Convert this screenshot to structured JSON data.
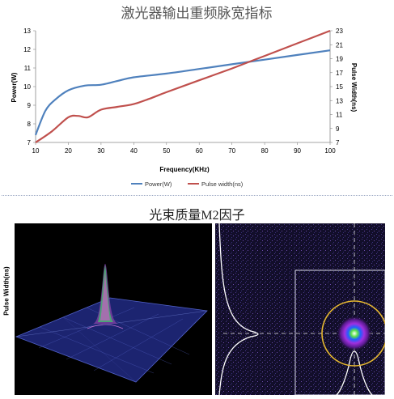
{
  "chart_data": {
    "type": "line",
    "title": "激光器输出重频脉宽指标",
    "xlabel": "Frequency(KHz)",
    "ylabel": "Power(W)",
    "y2label": "Pulse Width(ns)",
    "xlim": [
      10,
      100
    ],
    "ylim": [
      7,
      13
    ],
    "y2lim": [
      7,
      23
    ],
    "x_ticks": [
      10,
      20,
      30,
      40,
      50,
      60,
      70,
      80,
      90,
      100
    ],
    "y_ticks": [
      7,
      8,
      9,
      10,
      11,
      12,
      13
    ],
    "y2_ticks": [
      7,
      9,
      11,
      13,
      15,
      17,
      19,
      21,
      23
    ],
    "grid": false,
    "legend_position": "bottom",
    "series": [
      {
        "name": "Power(W)",
        "axis": "left",
        "color": "#4f81bd",
        "x": [
          10,
          13,
          16,
          20,
          25,
          30,
          35,
          40,
          50,
          60,
          70,
          80,
          90,
          100
        ],
        "y": [
          7.4,
          8.7,
          9.3,
          9.8,
          10.05,
          10.1,
          10.3,
          10.5,
          10.7,
          10.95,
          11.2,
          11.45,
          11.7,
          11.95
        ]
      },
      {
        "name": "Pulse width(ns)",
        "axis": "right",
        "color": "#c0504d",
        "x": [
          10,
          15,
          20,
          23,
          26,
          30,
          35,
          40,
          45,
          50,
          60,
          70,
          80,
          90,
          100
        ],
        "y": [
          7.0,
          8.6,
          10.6,
          10.8,
          10.6,
          11.7,
          12.1,
          12.5,
          13.3,
          14.2,
          15.9,
          17.6,
          19.4,
          21.2,
          23.0
        ]
      }
    ]
  },
  "section2": {
    "title": "光束质量M2因子",
    "left_label": "Pulse Width(ns)"
  },
  "colors": {
    "power": "#4f81bd",
    "pulse": "#c0504d",
    "grid_plane": "#3e4aa8",
    "beam_bg": "#120e2a",
    "ring": "#e6b830"
  }
}
